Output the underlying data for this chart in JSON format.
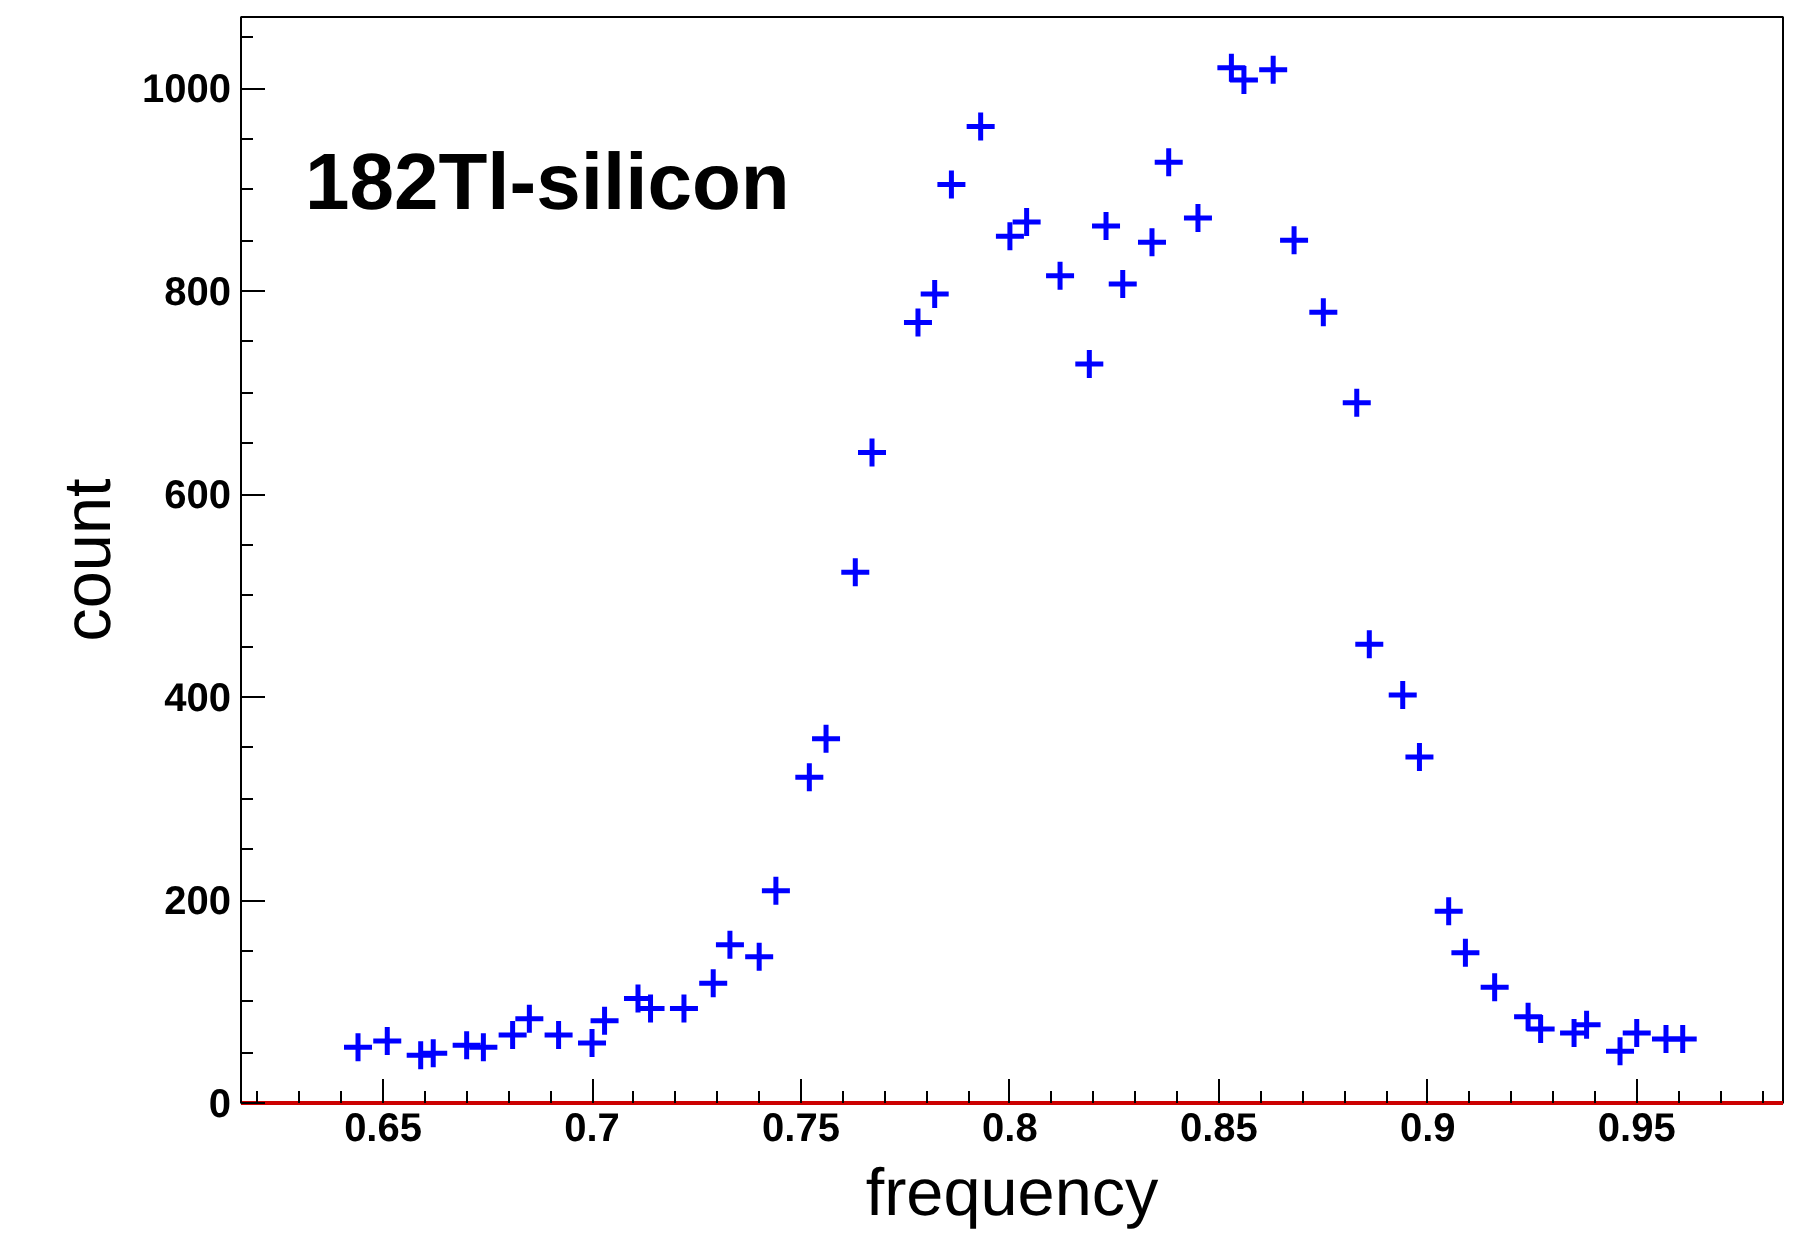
{
  "chart_data": {
    "type": "scatter",
    "annotations": [
      "182Tl-silicon"
    ],
    "xlabel": "frequency",
    "ylabel": "count",
    "x": [
      0.644,
      0.651,
      0.659,
      0.662,
      0.67,
      0.674,
      0.681,
      0.685,
      0.692,
      0.7,
      0.703,
      0.711,
      0.714,
      0.722,
      0.729,
      0.733,
      0.74,
      0.744,
      0.752,
      0.756,
      0.763,
      0.767,
      0.778,
      0.782,
      0.786,
      0.793,
      0.8,
      0.804,
      0.812,
      0.819,
      0.823,
      0.827,
      0.834,
      0.838,
      0.845,
      0.853,
      0.856,
      0.863,
      0.868,
      0.875,
      0.883,
      0.886,
      0.894,
      0.898,
      0.905,
      0.909,
      0.916,
      0.924,
      0.927,
      0.935,
      0.938,
      0.946,
      0.95,
      0.957,
      0.961
    ],
    "series": [
      {
        "color": "#0000ff",
        "values": [
          55,
          61,
          47,
          49,
          57,
          55,
          67,
          83,
          67,
          59,
          81,
          103,
          93,
          93,
          118,
          156,
          144,
          209,
          321,
          359,
          523,
          641,
          769,
          797,
          905,
          962,
          854,
          868,
          815,
          728,
          864,
          807,
          848,
          927,
          872,
          1020,
          1008,
          1018,
          850,
          779,
          690,
          452,
          402,
          341,
          189,
          148,
          114,
          85,
          73,
          69,
          77,
          51,
          69,
          63,
          63
        ]
      }
    ],
    "marker": "cross",
    "xlim": [
      0.616,
      0.985
    ],
    "ylim": [
      0,
      1070
    ],
    "xticks": [
      0.65,
      0.7,
      0.75,
      0.8,
      0.85,
      0.9,
      0.95
    ],
    "yticks": [
      0,
      200,
      400,
      600,
      800,
      1000
    ],
    "grid": false
  }
}
